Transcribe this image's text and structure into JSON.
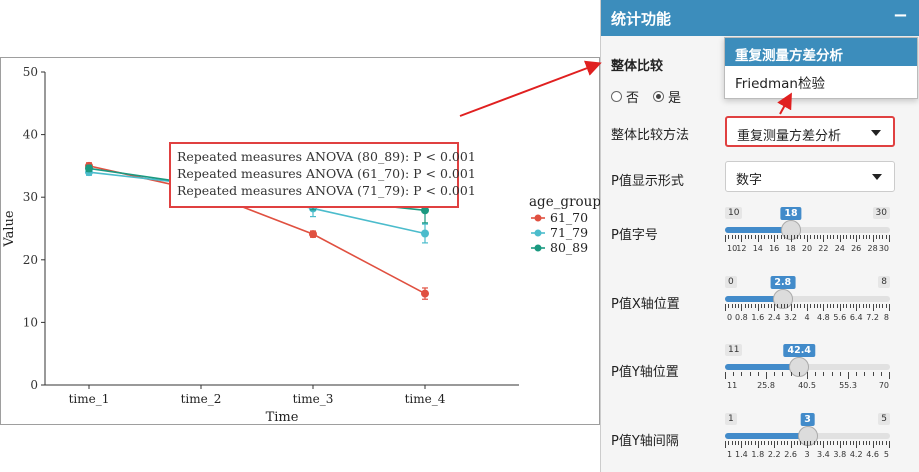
{
  "chart_data": {
    "type": "line",
    "xlabel": "Time",
    "ylabel": "Value",
    "categories": [
      "time_1",
      "time_2",
      "time_3",
      "time_4"
    ],
    "ylim": [
      0,
      50
    ],
    "yticks": [
      0,
      10,
      20,
      30,
      40,
      50
    ],
    "legend_title": "age_group",
    "legend_position": "right",
    "series": [
      {
        "name": "61_70",
        "color": "#e05040",
        "values": [
          35.0,
          31.0,
          24.1,
          14.6
        ],
        "err": [
          0.5,
          1.0,
          0.5,
          0.9
        ]
      },
      {
        "name": "71_79",
        "color": "#4bbccc",
        "values": [
          34.0,
          32.0,
          28.2,
          24.2
        ],
        "err": [
          0.5,
          1.3,
          1.3,
          1.5
        ]
      },
      {
        "name": "80_89",
        "color": "#1a9980",
        "values": [
          34.6,
          32.0,
          29.8,
          27.9
        ],
        "err": [
          0.5,
          1.8,
          1.8,
          2.0
        ]
      }
    ],
    "annotations": [
      "Repeated measures ANOVA (80_89): P < 0.001",
      "Repeated measures ANOVA (61_70): P < 0.001",
      "Repeated measures ANOVA (71_79): P < 0.001"
    ]
  },
  "panel": {
    "title": "统计功能",
    "collapse_symbol": "−",
    "overall_compare_label": "整体比较",
    "radio_no": "否",
    "radio_yes": "是",
    "method_label": "整体比较方法",
    "method_value": "重复测量方差分析",
    "dropdown_options": [
      "重复测量方差分析",
      "Friedman检验"
    ],
    "pformat_label": "P值显示形式",
    "pformat_value": "数字",
    "sliders": [
      {
        "label": "P值字号",
        "min": "10",
        "max": "30",
        "value": "18",
        "fraction": 0.4,
        "tick_labels": [
          "10",
          "12",
          "14",
          "16",
          "18",
          "20",
          "22",
          "24",
          "26",
          "28",
          "30"
        ]
      },
      {
        "label": "P值X轴位置",
        "min": "0",
        "max": "8",
        "value": "2.8",
        "fraction": 0.35,
        "tick_labels": [
          "0",
          "0.8",
          "1.6",
          "2.4",
          "3.2",
          "4",
          "4.8",
          "5.6",
          "6.4",
          "7.2",
          "8"
        ]
      },
      {
        "label": "P值Y轴位置",
        "min": "11",
        "max": "",
        "value": "42.4",
        "fraction": 0.45,
        "tick_labels": [
          "11",
          "25.8",
          "40.5",
          "55.3",
          "70"
        ]
      },
      {
        "label": "P值Y轴间隔",
        "min": "1",
        "max": "5",
        "value": "3",
        "fraction": 0.5,
        "tick_labels": [
          "1",
          "1.4",
          "1.8",
          "2.2",
          "2.6",
          "3",
          "3.4",
          "3.8",
          "4.2",
          "4.6",
          "5"
        ]
      }
    ]
  }
}
